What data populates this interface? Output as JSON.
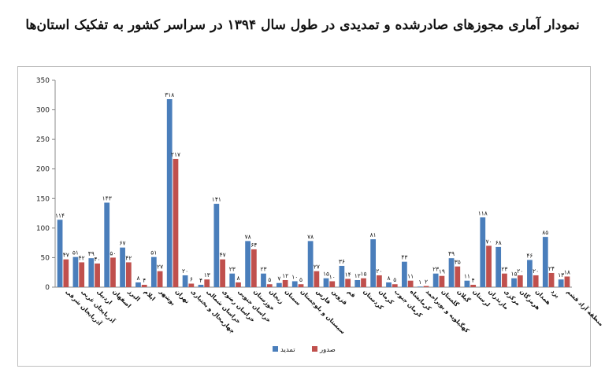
{
  "chart_data": {
    "type": "bar",
    "title": "نمودار آماری مجوزهای صادرشده و تمدیدی در طول سال ۱۳۹۴ در سراسر کشور به تفکیک استان‌ها",
    "ylim": [
      0,
      350
    ],
    "yticks": [
      0,
      50,
      100,
      150,
      200,
      250,
      300,
      350
    ],
    "grid": false,
    "legend_position": "bottom",
    "categories": [
      "آذربایجان شرقی",
      "آذربایجان غربی",
      "اردبیل",
      "اصفهان",
      "البرز",
      "ایلام",
      "بوشهر",
      "تهران",
      "چهارمحال و بختیاری",
      "خراسان شمالی",
      "خراسان رضوی",
      "خراسان جنوبی",
      "خوزستان",
      "زنجان",
      "سمنان",
      "سیستان و بلوچستان",
      "فارس",
      "قزوین",
      "قم",
      "کردستان",
      "کرمان",
      "کرمان جنوب",
      "کرمانشاه",
      "کهگیلویه و بویراحمد",
      "گلستان",
      "گیلان",
      "لرستان",
      "مازندران",
      "مرکزی",
      "هرمزگان",
      "همدان",
      "یزد",
      "منطقه آزاد قشم"
    ],
    "series": [
      {
        "name": "تمدید",
        "color": "#4a7ebb",
        "values": [
          114,
          51,
          49,
          143,
          67,
          8,
          51,
          318,
          20,
          4,
          141,
          23,
          78,
          23,
          7,
          10,
          78,
          15,
          36,
          12,
          81,
          8,
          43,
          1,
          23,
          49,
          11,
          118,
          68,
          15,
          46,
          85,
          13
        ],
        "labels": [
          "۱۱۴",
          "۵۱",
          "۴۹",
          "۱۴۳",
          "۶۷",
          "۸",
          "۵۱",
          "۳۱۸",
          "۲۰",
          "۴",
          "۱۴۱",
          "۲۳",
          "۷۸",
          "۲۳",
          "۷",
          "۱۰",
          "۷۸",
          "۱۵",
          "۳۶",
          "۱۲",
          "۸۱",
          "۸",
          "۴۳",
          "۱",
          "۲۳",
          "۴۹",
          "۱۱",
          "۱۱۸",
          "۶۸",
          "۱۵",
          "۴۶",
          "۸۵",
          "۱۳"
        ]
      },
      {
        "name": "صدور",
        "color": "#c0504d",
        "values": [
          47,
          42,
          40,
          50,
          42,
          4,
          27,
          217,
          6,
          13,
          47,
          8,
          64,
          5,
          12,
          5,
          27,
          10,
          14,
          15,
          20,
          5,
          11,
          2,
          19,
          35,
          4,
          70,
          23,
          20,
          20,
          24,
          18
        ],
        "labels": [
          "۴۷",
          "۴۲",
          "۴۰",
          "۵۰",
          "۴۲",
          "۴",
          "۲۷",
          "۲۱۷",
          "۶",
          "۱۳",
          "۴۷",
          "۸",
          "۶۴",
          "۵",
          "۱۲",
          "۵",
          "۲۷",
          "۱۰",
          "۱۴",
          "۱۵",
          "۲۰",
          "۵",
          "۱۱",
          "۲",
          "۱۹",
          "۳۵",
          "۴",
          "۷۰",
          "۲۳",
          "۲۰",
          "۲۰",
          "۲۴",
          "۱۸"
        ]
      }
    ]
  }
}
